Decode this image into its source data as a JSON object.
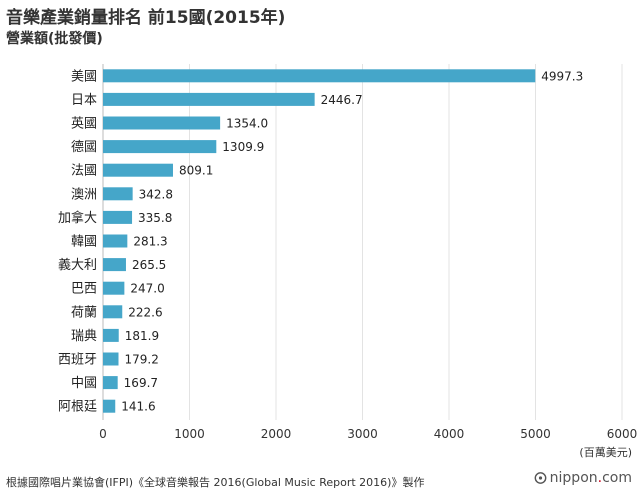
{
  "title": "音樂產業銷量排名 前15國(2015年)",
  "subtitle": "營業額(批發價)",
  "source": "根據國際唱片業協會(IFPI)《全球音樂報告 2016(Global Music Report 2016)》製作",
  "brand": {
    "name": "nippon",
    "dot": ".",
    "suffix": "com",
    "icon": "bubble-icon"
  },
  "colors": {
    "bar": "#45a6c9",
    "grid": "#e3e3e3",
    "axis": "#bbbbbb",
    "brand_dot": "#d0021b"
  },
  "chart_data": {
    "type": "bar",
    "orientation": "horizontal",
    "categories": [
      "美國",
      "日本",
      "英國",
      "德國",
      "法國",
      "澳洲",
      "加拿大",
      "韓國",
      "義大利",
      "巴西",
      "荷蘭",
      "瑞典",
      "西班牙",
      "中國",
      "阿根廷"
    ],
    "values": [
      4997.3,
      2446.7,
      1354.0,
      1309.9,
      809.1,
      342.8,
      335.8,
      281.3,
      265.5,
      247.0,
      222.6,
      181.9,
      179.2,
      169.7,
      141.6
    ],
    "value_labels": [
      "4997.3",
      "2446.7",
      "1354.0",
      "1309.9",
      "809.1",
      "342.8",
      "335.8",
      "281.3",
      "265.5",
      "247.0",
      "222.6",
      "181.9",
      "179.2",
      "169.7",
      "141.6"
    ],
    "xlim": [
      0,
      6000
    ],
    "xticks": [
      0,
      1000,
      2000,
      3000,
      4000,
      5000,
      6000
    ],
    "xtick_labels": [
      "0",
      "1000",
      "2000",
      "3000",
      "4000",
      "5000",
      "6000"
    ],
    "unit_label": "(百萬美元)",
    "grid": true
  }
}
